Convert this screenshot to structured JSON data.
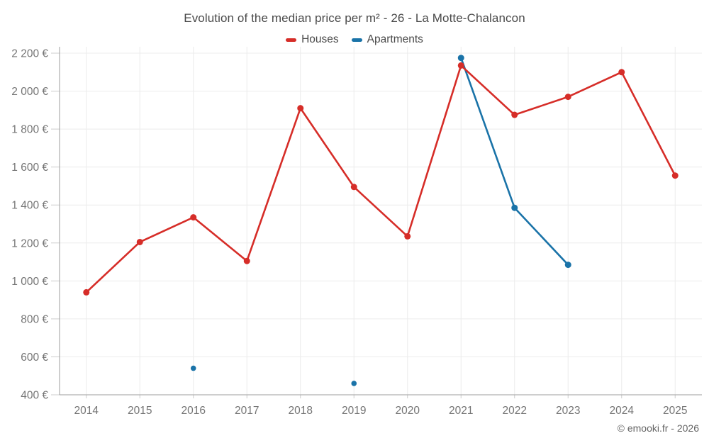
{
  "header": {
    "title": "Evolution of the median price per m² - 26 - La Motte-Chalancon"
  },
  "footer": {
    "credit": "© emooki.fr - 2026"
  },
  "chart_data": {
    "type": "line",
    "title": "Evolution of the median price per m² - 26 - La Motte-Chalancon",
    "categories": [
      "2014",
      "2015",
      "2016",
      "2017",
      "2018",
      "2019",
      "2020",
      "2021",
      "2022",
      "2023",
      "2024",
      "2025"
    ],
    "series": [
      {
        "name": "Houses",
        "color": "#d62d28",
        "values": [
          940,
          1205,
          1335,
          1105,
          1910,
          1495,
          1235,
          2135,
          1875,
          1970,
          2100,
          1555
        ]
      },
      {
        "name": "Apartments",
        "color": "#1a73a8",
        "values": [
          null,
          null,
          540,
          null,
          null,
          460,
          null,
          2175,
          1385,
          1085,
          null,
          null
        ]
      }
    ],
    "ylabel": "",
    "xlabel": "",
    "y_unit": "€",
    "ylim": [
      400,
      2200
    ],
    "ytick_step": 200,
    "grid": true,
    "legend_position": "top",
    "colors": {
      "grid": "#ececec",
      "axis": "#9e9e9e",
      "tick": "#cccccc",
      "tick_label": "#757575",
      "title_text": "#4a4a4a"
    }
  }
}
